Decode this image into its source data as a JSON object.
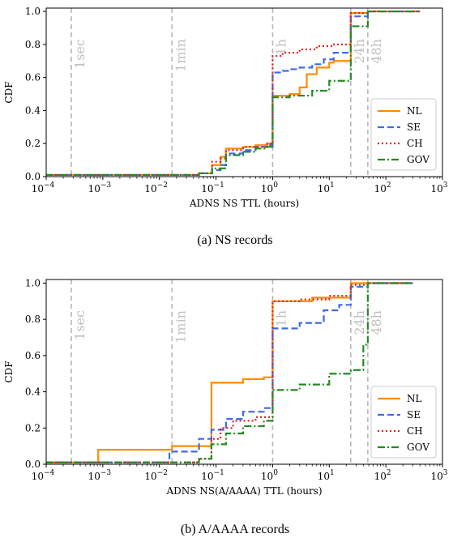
{
  "chart_data": [
    {
      "type": "line",
      "xlabel": "ADNS NS TTL (hours)",
      "ylabel": "CDF",
      "caption": "(a) NS records",
      "xscale": "log",
      "xlim": [
        0.0001,
        1000
      ],
      "ylim": [
        0,
        1.02
      ],
      "xticks": [
        {
          "value": 0.0001,
          "base": "10",
          "exp": "−4"
        },
        {
          "value": 0.001,
          "base": "10",
          "exp": "−3"
        },
        {
          "value": 0.01,
          "base": "10",
          "exp": "−2"
        },
        {
          "value": 0.1,
          "base": "10",
          "exp": "−1"
        },
        {
          "value": 1,
          "base": "10",
          "exp": "0"
        },
        {
          "value": 10,
          "base": "10",
          "exp": "1"
        },
        {
          "value": 100,
          "base": "10",
          "exp": "2"
        },
        {
          "value": 1000,
          "base": "10",
          "exp": "3"
        }
      ],
      "yticks": [
        {
          "value": 0.0,
          "label": "0.0"
        },
        {
          "value": 0.2,
          "label": "0.2"
        },
        {
          "value": 0.4,
          "label": "0.4"
        },
        {
          "value": 0.6,
          "label": "0.6"
        },
        {
          "value": 0.8,
          "label": "0.8"
        },
        {
          "value": 1.0,
          "label": "1.0"
        }
      ],
      "reference_lines": [
        {
          "x": 0.000278,
          "label": "1sec"
        },
        {
          "x": 0.0167,
          "label": "1min"
        },
        {
          "x": 1,
          "label": "1h"
        },
        {
          "x": 24,
          "label": "24h"
        },
        {
          "x": 48,
          "label": "48h"
        }
      ],
      "legend_position": "lower-right",
      "series": [
        {
          "name": "NL",
          "color": "#ff8c00",
          "style": "solid",
          "x": [
            0.0001,
            0.01,
            0.05,
            0.085,
            0.12,
            0.15,
            0.3,
            0.5,
            0.8,
            1,
            1.5,
            2,
            3,
            4,
            6,
            10,
            12,
            24,
            48,
            400
          ],
          "y": [
            0.01,
            0.01,
            0.02,
            0.07,
            0.12,
            0.17,
            0.18,
            0.19,
            0.2,
            0.49,
            0.49,
            0.5,
            0.54,
            0.62,
            0.66,
            0.69,
            0.7,
            0.99,
            1.0,
            1.0
          ]
        },
        {
          "name": "SE",
          "color": "#4169e1",
          "style": "dashed",
          "x": [
            0.0001,
            0.01,
            0.05,
            0.085,
            0.12,
            0.15,
            0.3,
            0.5,
            0.8,
            1,
            1.5,
            2,
            3,
            5,
            8,
            12,
            24,
            48,
            400
          ],
          "y": [
            0.01,
            0.01,
            0.02,
            0.04,
            0.07,
            0.14,
            0.16,
            0.18,
            0.19,
            0.63,
            0.64,
            0.65,
            0.66,
            0.68,
            0.71,
            0.75,
            0.97,
            1.0,
            1.0
          ]
        },
        {
          "name": "CH",
          "color": "#e02020",
          "style": "dotted",
          "x": [
            0.0001,
            0.01,
            0.05,
            0.085,
            0.12,
            0.15,
            0.3,
            0.5,
            0.8,
            1,
            1.5,
            3,
            6,
            12,
            24,
            48,
            400
          ],
          "y": [
            0.01,
            0.01,
            0.02,
            0.09,
            0.11,
            0.16,
            0.18,
            0.18,
            0.2,
            0.73,
            0.75,
            0.77,
            0.79,
            0.8,
            0.99,
            1.0,
            1.0
          ]
        },
        {
          "name": "GOV",
          "color": "#228b22",
          "style": "dashdot",
          "x": [
            0.0001,
            0.01,
            0.05,
            0.085,
            0.12,
            0.15,
            0.3,
            0.5,
            0.8,
            1,
            2,
            5,
            10,
            24,
            48,
            400
          ],
          "y": [
            0.01,
            0.01,
            0.02,
            0.05,
            0.05,
            0.13,
            0.15,
            0.17,
            0.18,
            0.48,
            0.49,
            0.52,
            0.58,
            0.91,
            1.0,
            1.0
          ]
        }
      ]
    },
    {
      "type": "line",
      "xlabel": "ADNS NS(A/AAAA) TTL (hours)",
      "ylabel": "CDF",
      "caption": "(b) A/AAAA records",
      "xscale": "log",
      "xlim": [
        0.0001,
        1000
      ],
      "ylim": [
        0,
        1.02
      ],
      "xticks": [
        {
          "value": 0.0001,
          "base": "10",
          "exp": "−4"
        },
        {
          "value": 0.001,
          "base": "10",
          "exp": "−3"
        },
        {
          "value": 0.01,
          "base": "10",
          "exp": "−2"
        },
        {
          "value": 0.1,
          "base": "10",
          "exp": "−1"
        },
        {
          "value": 1,
          "base": "10",
          "exp": "0"
        },
        {
          "value": 10,
          "base": "10",
          "exp": "1"
        },
        {
          "value": 100,
          "base": "10",
          "exp": "2"
        },
        {
          "value": 1000,
          "base": "10",
          "exp": "3"
        }
      ],
      "yticks": [
        {
          "value": 0.0,
          "label": "0.0"
        },
        {
          "value": 0.2,
          "label": "0.2"
        },
        {
          "value": 0.4,
          "label": "0.4"
        },
        {
          "value": 0.6,
          "label": "0.6"
        },
        {
          "value": 0.8,
          "label": "0.8"
        },
        {
          "value": 1.0,
          "label": "1.0"
        }
      ],
      "reference_lines": [
        {
          "x": 0.000278,
          "label": "1sec"
        },
        {
          "x": 0.0167,
          "label": "1min"
        },
        {
          "x": 1,
          "label": "1h"
        },
        {
          "x": 24,
          "label": "24h"
        },
        {
          "x": 48,
          "label": "48h"
        }
      ],
      "legend_position": "lower-right",
      "series": [
        {
          "name": "NL",
          "color": "#ff8c00",
          "style": "solid",
          "x": [
            0.0001,
            0.00083,
            0.0167,
            0.083,
            0.3,
            0.7,
            1,
            5,
            24,
            48,
            300
          ],
          "y": [
            0.01,
            0.08,
            0.1,
            0.45,
            0.47,
            0.48,
            0.9,
            0.92,
            1.0,
            1.0,
            1.0
          ]
        },
        {
          "name": "SE",
          "color": "#4169e1",
          "style": "dashed",
          "x": [
            0.0001,
            0.015,
            0.05,
            0.083,
            0.15,
            0.3,
            0.7,
            1,
            3,
            8,
            15,
            24,
            48,
            300
          ],
          "y": [
            0.01,
            0.07,
            0.14,
            0.19,
            0.25,
            0.29,
            0.31,
            0.75,
            0.78,
            0.85,
            0.88,
            0.98,
            1.0,
            1.0
          ]
        },
        {
          "name": "CH",
          "color": "#e02020",
          "style": "dotted",
          "x": [
            0.0001,
            0.01,
            0.05,
            0.083,
            0.12,
            0.2,
            0.5,
            1,
            3,
            10,
            24,
            48,
            300
          ],
          "y": [
            0.01,
            0.01,
            0.03,
            0.14,
            0.2,
            0.24,
            0.26,
            0.9,
            0.91,
            0.93,
            0.99,
            1.0,
            1.0
          ]
        },
        {
          "name": "GOV",
          "color": "#228b22",
          "style": "dashdot",
          "x": [
            0.0001,
            0.01,
            0.05,
            0.083,
            0.15,
            0.3,
            0.7,
            1,
            3,
            10,
            24,
            40,
            48,
            300
          ],
          "y": [
            0.01,
            0.01,
            0.03,
            0.11,
            0.17,
            0.21,
            0.24,
            0.41,
            0.44,
            0.5,
            0.52,
            0.66,
            1.0,
            1.0
          ]
        }
      ]
    }
  ]
}
